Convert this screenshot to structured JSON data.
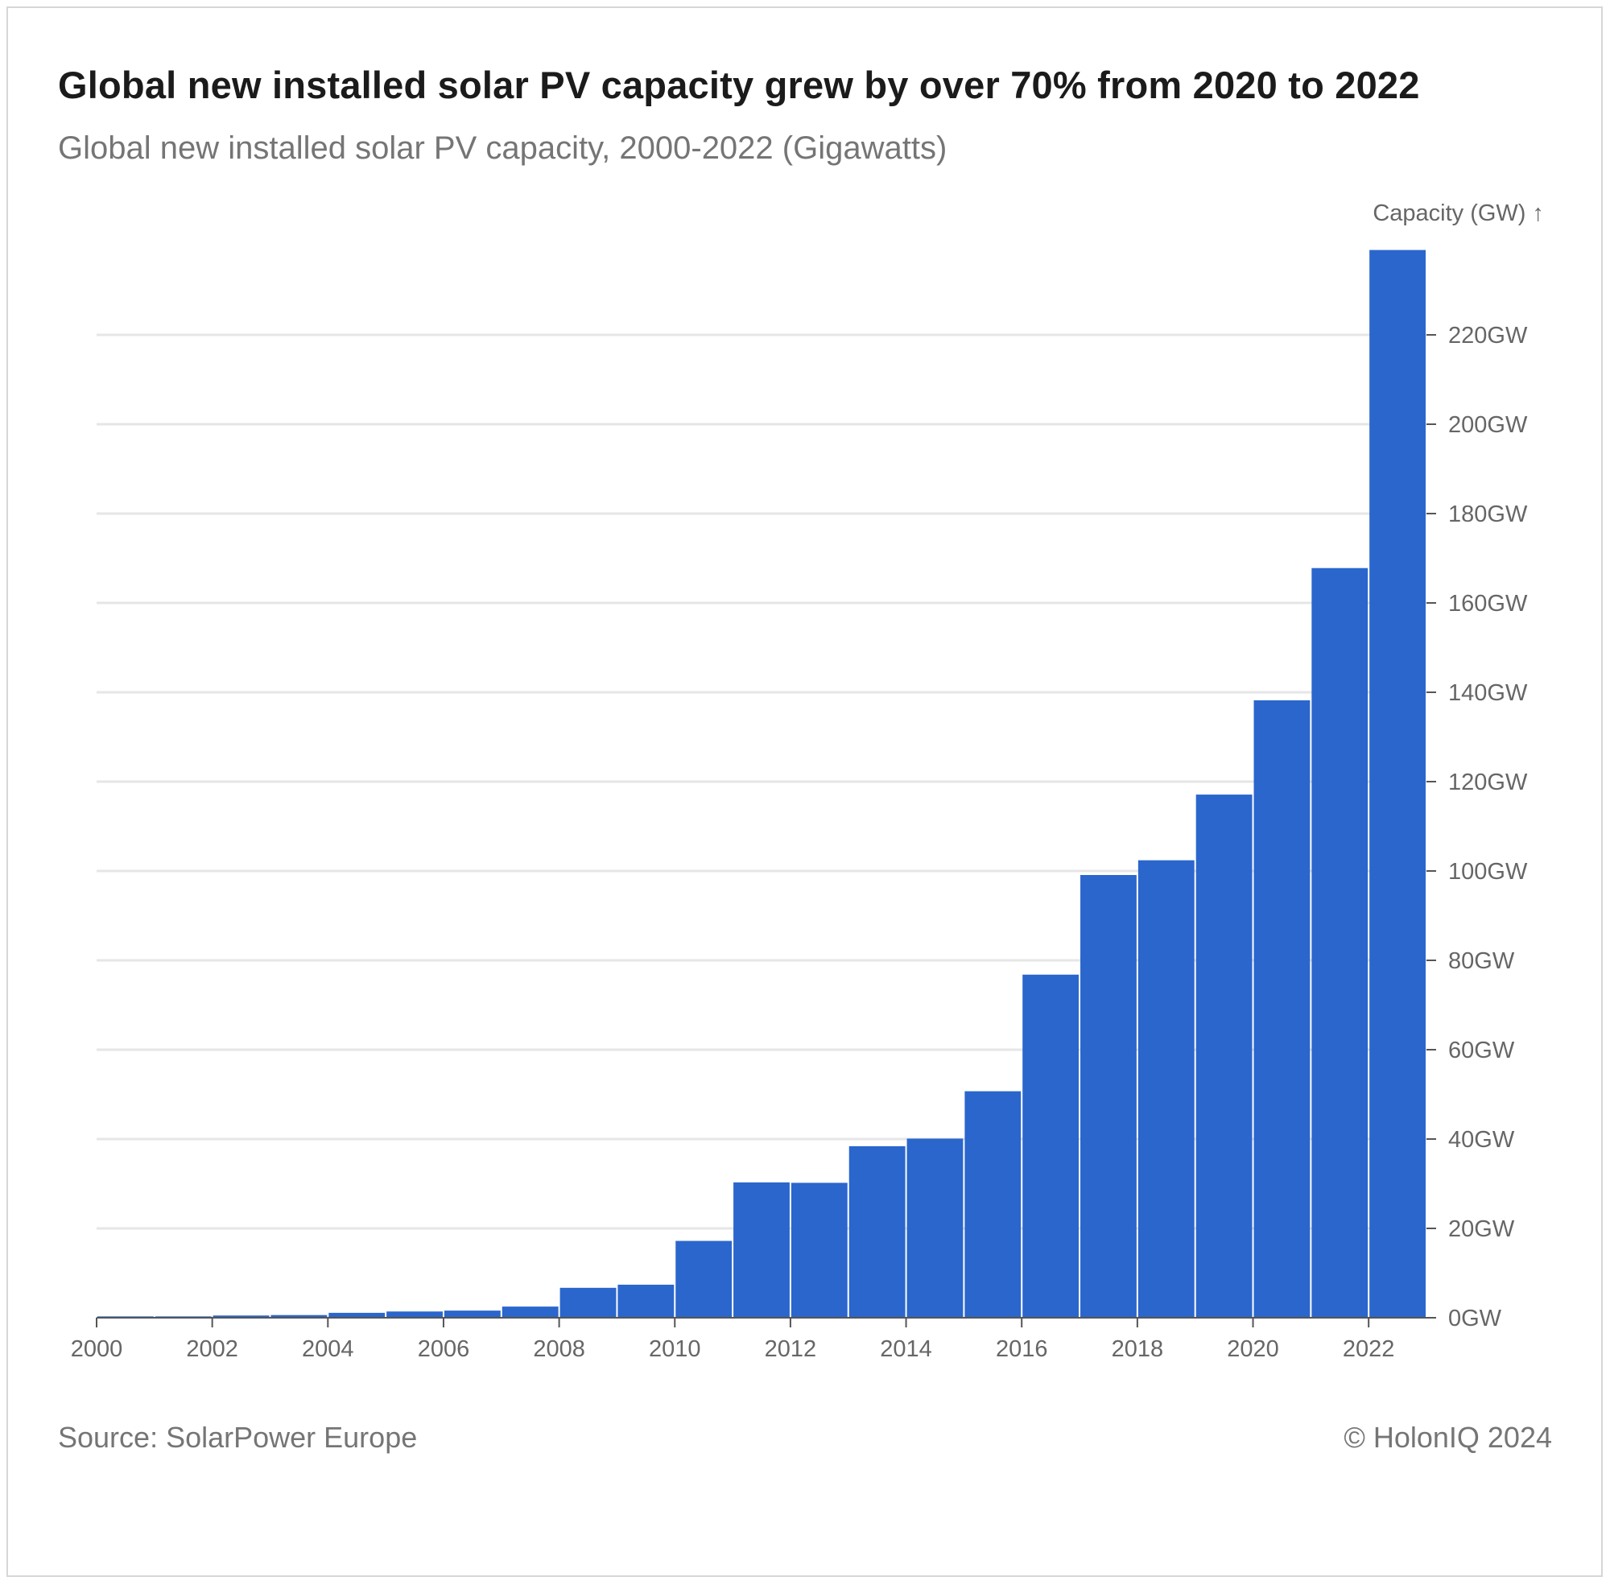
{
  "title": "Global new installed solar PV capacity grew by over 70% from 2020 to 2022",
  "subtitle": "Global new installed solar PV capacity, 2000-2022 (Gigawatts)",
  "source": "Source: SolarPower Europe",
  "copyright": "© HolonIQ 2024",
  "colors": {
    "bar": "#2a66cc",
    "grid": "#e6e6e6",
    "axis": "#555555"
  },
  "chart_data": {
    "type": "bar",
    "ylabel": "Capacity (GW) ↑",
    "ylim": [
      0,
      240
    ],
    "y_ticks": [
      {
        "value": 0,
        "label": "0GW"
      },
      {
        "value": 20,
        "label": "20GW"
      },
      {
        "value": 40,
        "label": "40GW"
      },
      {
        "value": 60,
        "label": "60GW"
      },
      {
        "value": 80,
        "label": "80GW"
      },
      {
        "value": 100,
        "label": "100GW"
      },
      {
        "value": 120,
        "label": "120GW"
      },
      {
        "value": 140,
        "label": "140GW"
      },
      {
        "value": 160,
        "label": "160GW"
      },
      {
        "value": 180,
        "label": "180GW"
      },
      {
        "value": 200,
        "label": "200GW"
      },
      {
        "value": 220,
        "label": "220GW"
      }
    ],
    "x_ticks": [
      "2000",
      "2002",
      "2004",
      "2006",
      "2008",
      "2010",
      "2012",
      "2014",
      "2016",
      "2018",
      "2020",
      "2022"
    ],
    "y_axis_side": "right",
    "grid": true,
    "categories": [
      "2000",
      "2001",
      "2002",
      "2003",
      "2004",
      "2005",
      "2006",
      "2007",
      "2008",
      "2009",
      "2010",
      "2011",
      "2012",
      "2013",
      "2014",
      "2015",
      "2016",
      "2017",
      "2018",
      "2019",
      "2020",
      "2021",
      "2022"
    ],
    "values": [
      0.3,
      0.3,
      0.5,
      0.6,
      1.1,
      1.4,
      1.6,
      2.5,
      6.7,
      7.4,
      17.2,
      30.3,
      30.2,
      38.4,
      40.1,
      50.7,
      76.8,
      99.1,
      102.4,
      117.1,
      138.2,
      167.8,
      239.0
    ]
  }
}
